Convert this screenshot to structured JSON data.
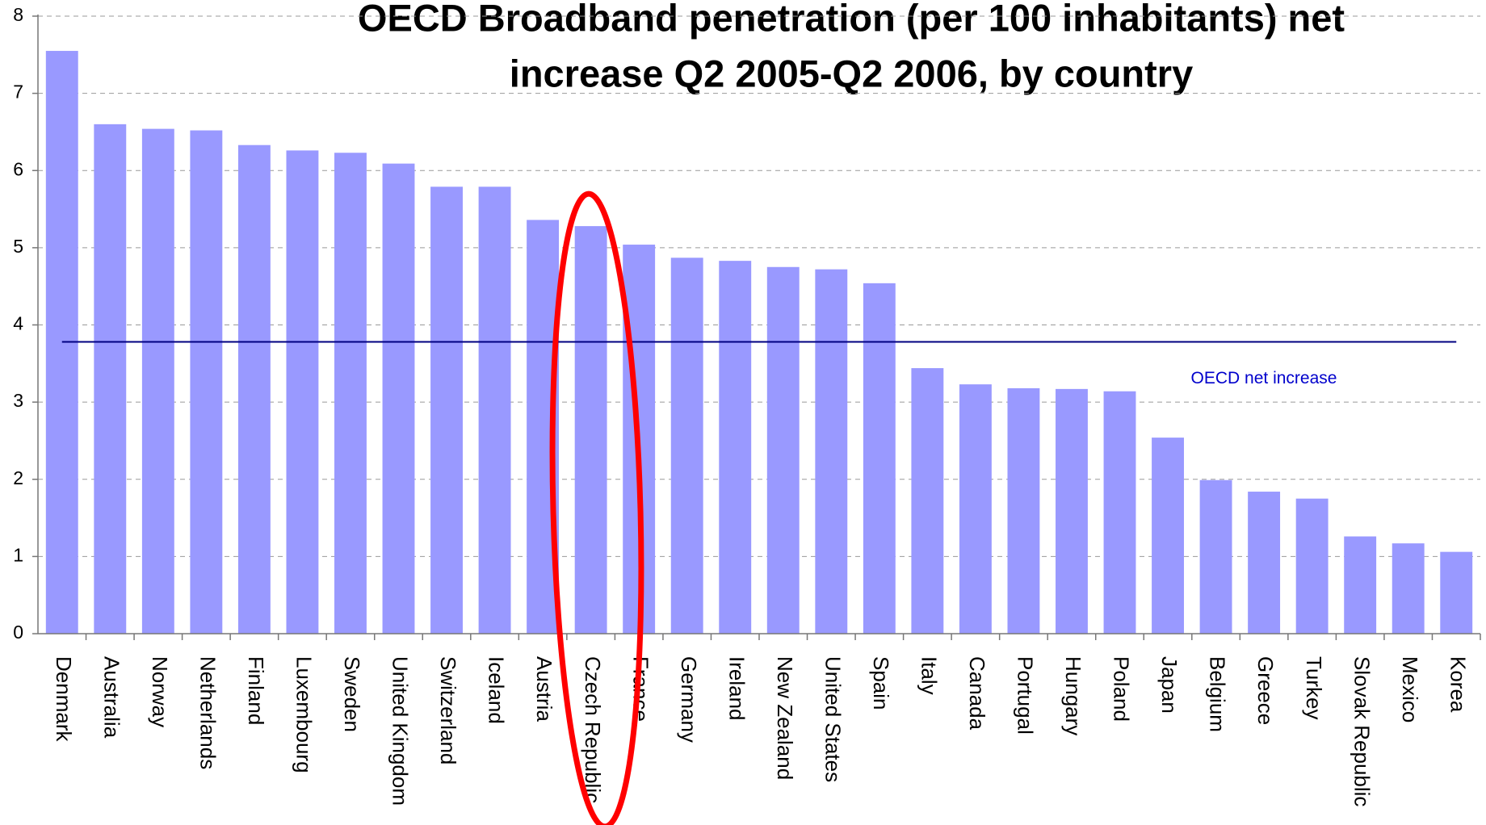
{
  "chart_data": {
    "type": "bar",
    "title": [
      "OECD Broadband penetration (per 100 inhabitants) net",
      "increase Q2 2005-Q2 2006, by country"
    ],
    "categories": [
      "Denmark",
      "Australia",
      "Norway",
      "Netherlands",
      "Finland",
      "Luxembourg",
      "Sweden",
      "United Kingdom",
      "Switzerland",
      "Iceland",
      "Austria",
      "Czech Republic",
      "France",
      "Germany",
      "Ireland",
      "New Zealand",
      "United States",
      "Spain",
      "Italy",
      "Canada",
      "Portugal",
      "Hungary",
      "Poland",
      "Japan",
      "Belgium",
      "Greece",
      "Turkey",
      "Slovak Republic",
      "Mexico",
      "Korea"
    ],
    "values": [
      7.55,
      6.6,
      6.54,
      6.52,
      6.33,
      6.26,
      6.23,
      6.09,
      5.79,
      5.79,
      5.36,
      5.28,
      5.04,
      4.87,
      4.83,
      4.75,
      4.72,
      4.54,
      3.44,
      3.23,
      3.18,
      3.17,
      3.14,
      2.54,
      1.99,
      1.84,
      1.75,
      1.26,
      1.17,
      1.06
    ],
    "color": "#9999ff",
    "ylim": [
      0,
      8
    ],
    "yticks": [
      0,
      1,
      2,
      3,
      4,
      5,
      6,
      7,
      8
    ],
    "grid": true,
    "reference_line": {
      "value": 3.78,
      "label": "OECD net increase",
      "color": "#000080"
    }
  }
}
